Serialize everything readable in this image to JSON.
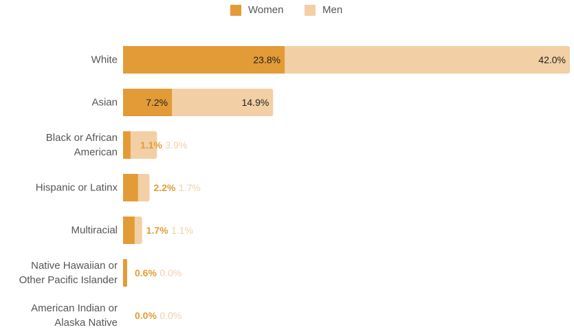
{
  "legend": {
    "women_label": "Women",
    "men_label": "Men"
  },
  "colors": {
    "women": "#E39B37",
    "men": "#F2CFA4",
    "label_text": "#555555",
    "inside_label": "#222222"
  },
  "chart_data": {
    "type": "bar",
    "orientation": "horizontal",
    "stacked": true,
    "title": "",
    "xlabel": "",
    "ylabel": "",
    "xlim": [
      0,
      65.8
    ],
    "grid": false,
    "legend_position": "top-center",
    "categories": [
      "White",
      "Asian",
      "Black or African American",
      "Hispanic or Latinx",
      "Multiracial",
      "Native Hawaiian or Other Pacific Islander",
      "American Indian or Alaska Native"
    ],
    "category_lines": [
      [
        "White"
      ],
      [
        "Asian"
      ],
      [
        "Black or African",
        "American"
      ],
      [
        "Hispanic or Latinx"
      ],
      [
        "Multiracial"
      ],
      [
        "Native Hawaiian or",
        "Other Pacific Islander"
      ],
      [
        "American Indian or",
        "Alaska Native"
      ]
    ],
    "series": [
      {
        "name": "Women",
        "values": [
          23.8,
          7.2,
          1.1,
          2.2,
          1.7,
          0.6,
          0.0
        ],
        "labels": [
          "23.8%",
          "7.2%",
          "1.1%",
          "2.2%",
          "1.7%",
          "0.6%",
          "0.0%"
        ]
      },
      {
        "name": "Men",
        "values": [
          42.0,
          14.9,
          3.9,
          1.7,
          1.1,
          0.0,
          0.0
        ],
        "labels": [
          "42.0%",
          "14.9%",
          "3.9%",
          "1.7%",
          "1.1%",
          "0.0%",
          "0.0%"
        ]
      }
    ]
  }
}
